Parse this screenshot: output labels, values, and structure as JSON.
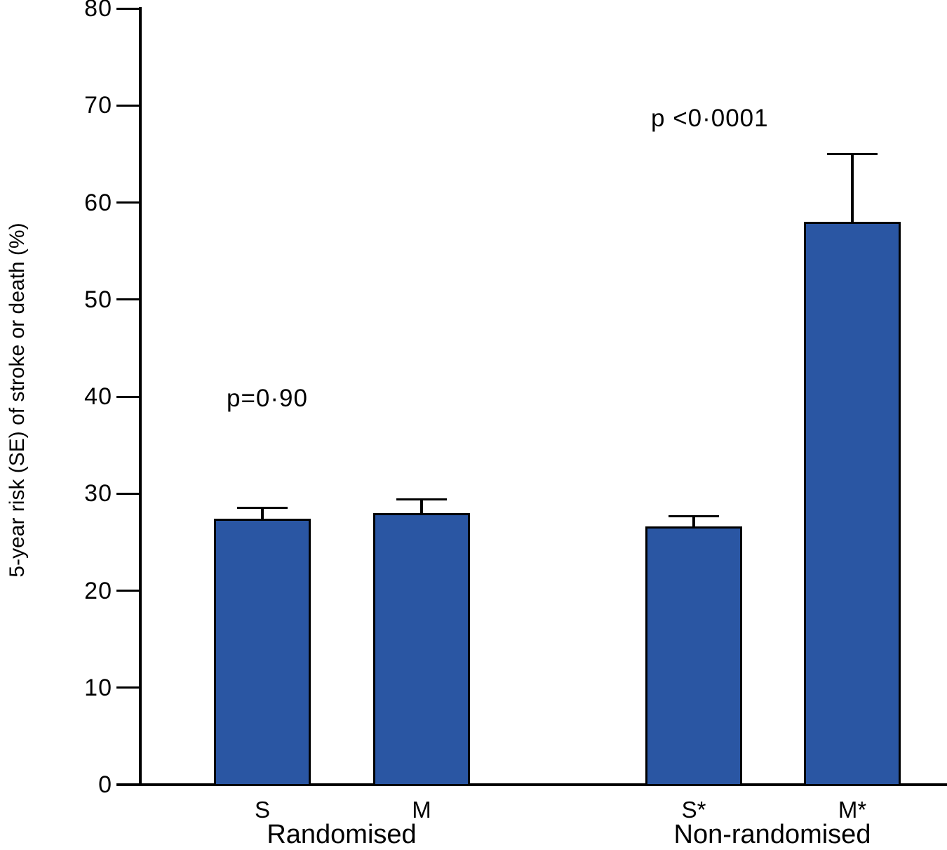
{
  "chart_data": {
    "type": "bar",
    "title": "",
    "xlabel": "",
    "ylabel": "5-year risk (SE) of stroke or death (%)",
    "ylim": [
      0,
      80
    ],
    "yticks": [
      0,
      10,
      20,
      30,
      40,
      50,
      60,
      70,
      80
    ],
    "grid": false,
    "legend": "none",
    "categories": [
      "S",
      "M",
      "S*",
      "M*"
    ],
    "values": [
      27.4,
      28.0,
      26.6,
      58.0
    ],
    "se_upper": [
      1.1,
      1.4,
      1.1,
      7.0
    ],
    "error_bar_tops": [
      28.5,
      29.4,
      27.7,
      65.0
    ],
    "bar_color": "#2A56A3",
    "bar_border_color": "#000000",
    "axis_color": "#000000",
    "groups": [
      {
        "label": "Randomised",
        "categories": [
          "S",
          "M"
        ]
      },
      {
        "label": "Non-randomised",
        "categories": [
          "S*",
          "M*"
        ]
      }
    ],
    "annotations": [
      {
        "text": "p=0·90",
        "applies_to": "Randomised"
      },
      {
        "text": "p <0·0001",
        "applies_to": "Non-randomised"
      }
    ]
  }
}
